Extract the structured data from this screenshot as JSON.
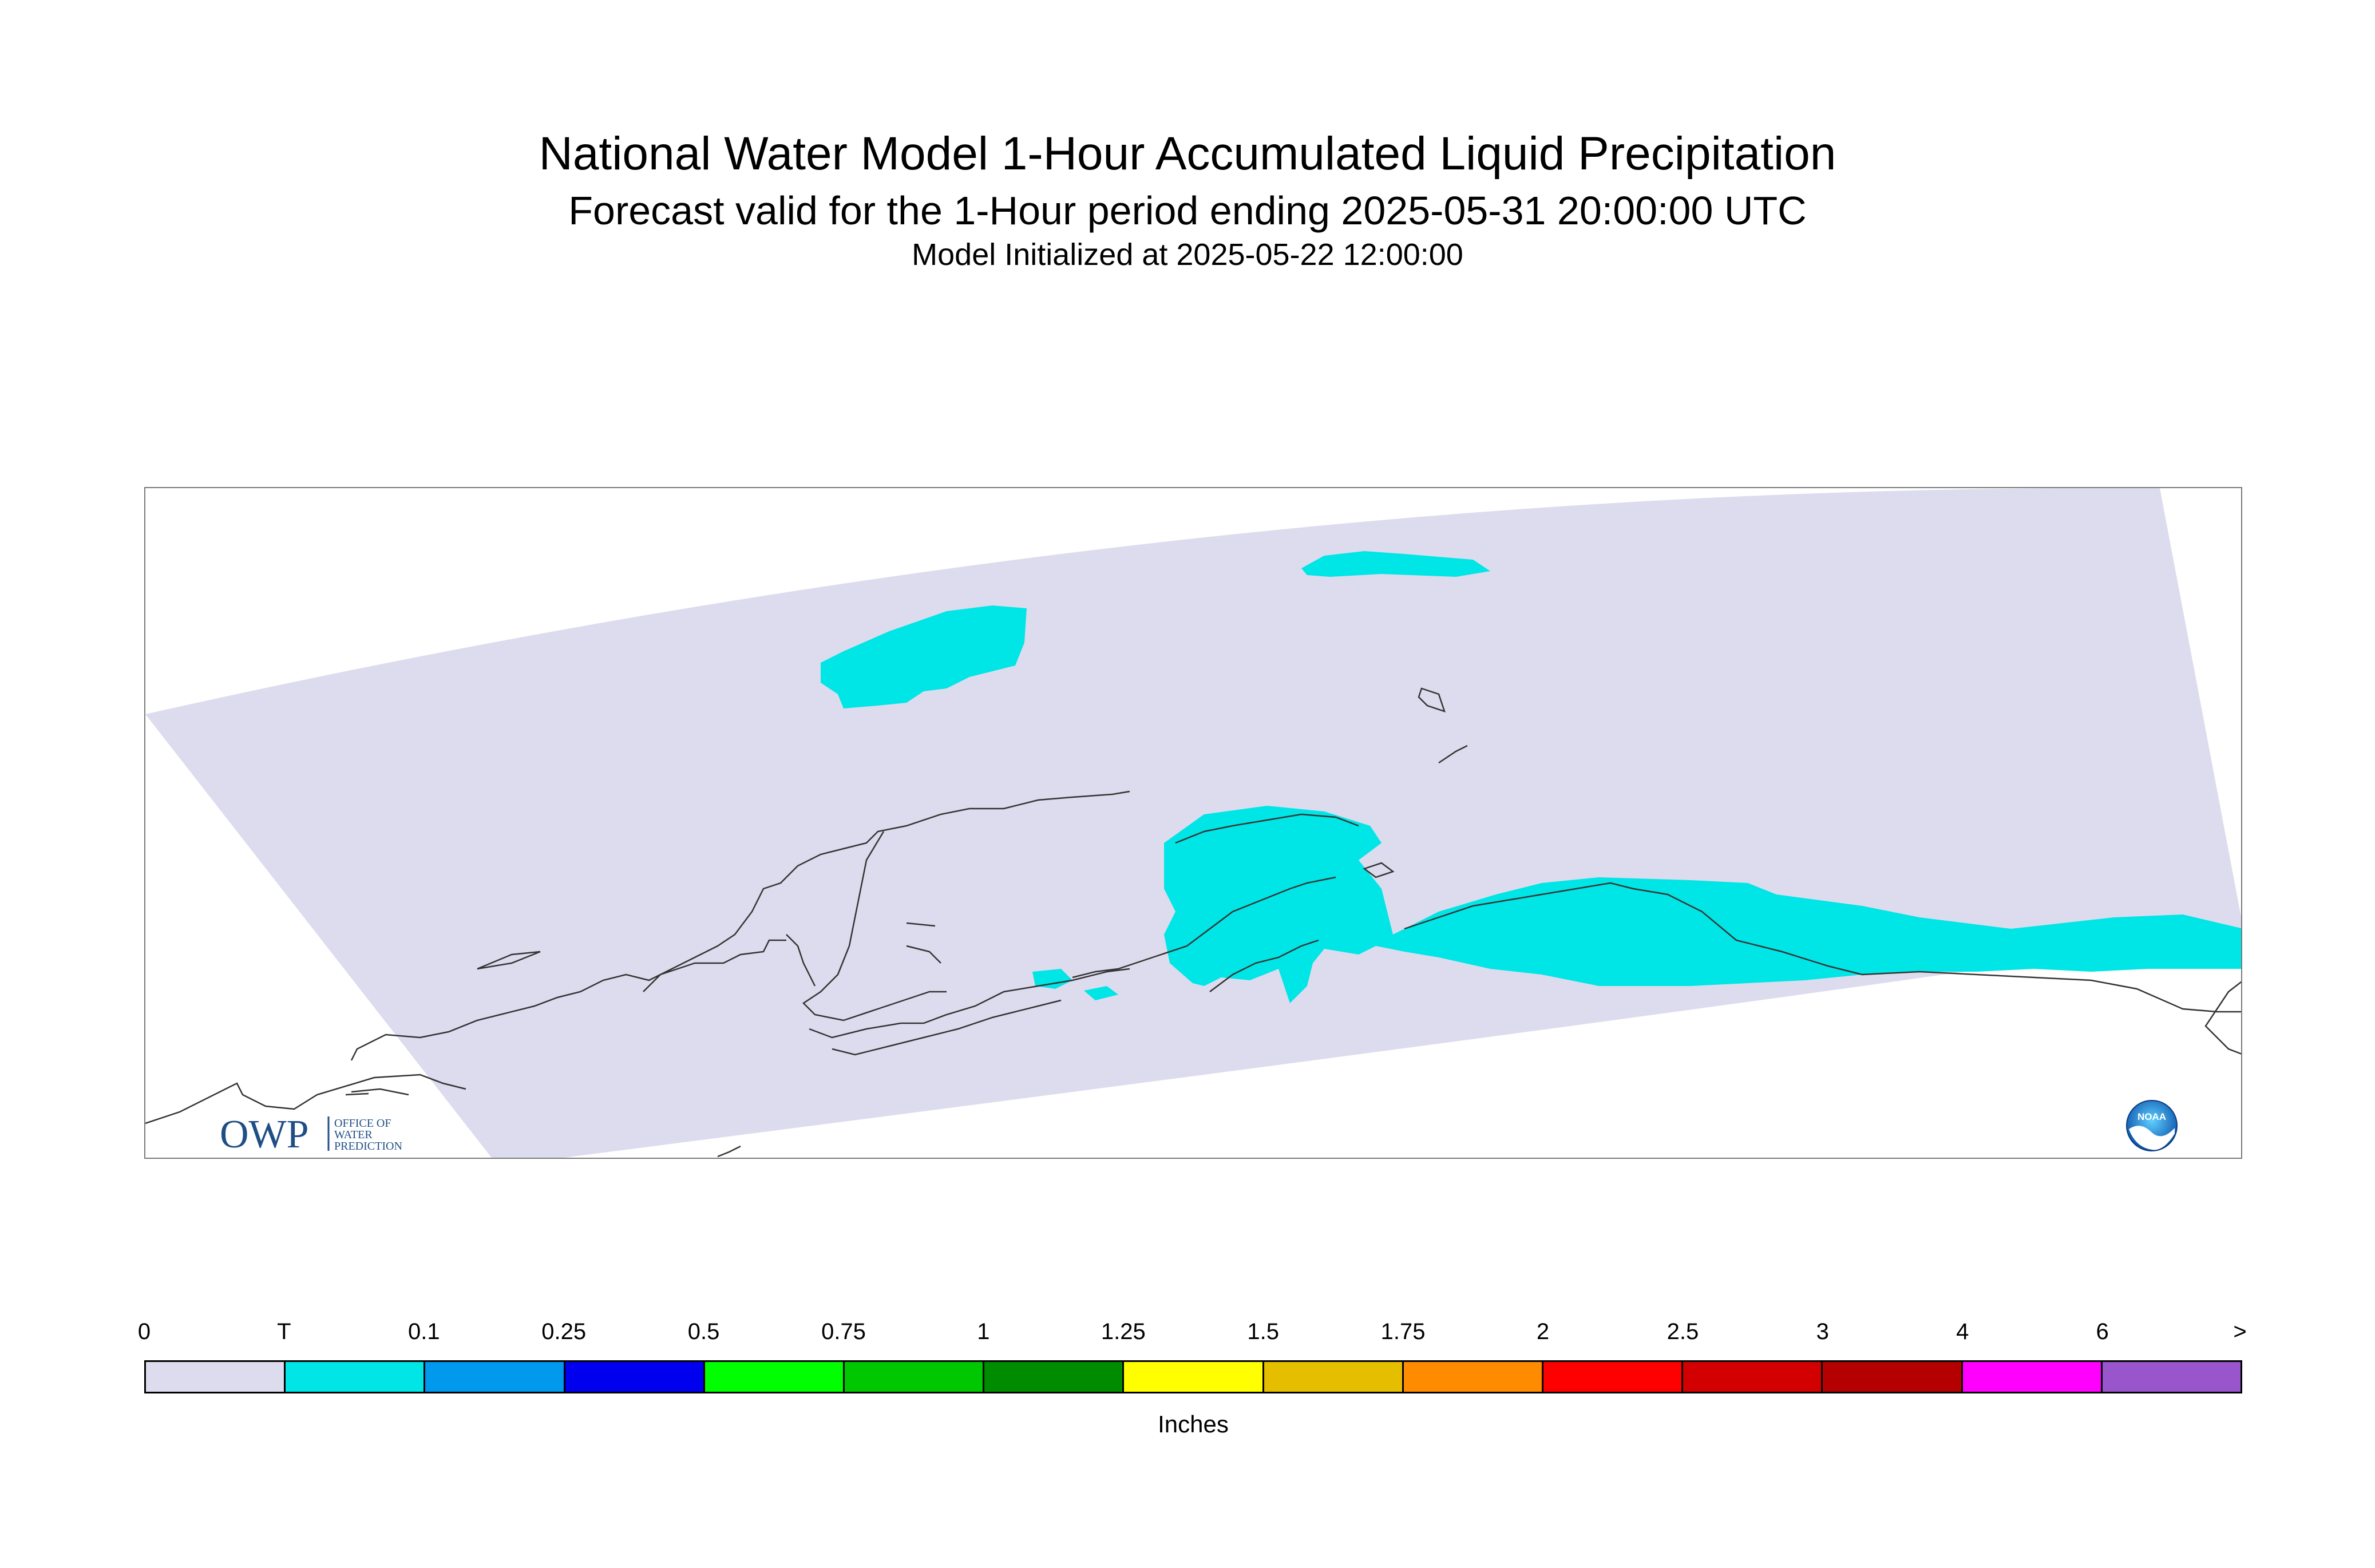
{
  "header": {
    "title": "National Water Model 1-Hour Accumulated Liquid Precipitation",
    "subtitle": "Forecast valid for the 1-Hour period ending 2025-05-31 20:00:00 UTC",
    "init_line": "Model Initialized at 2025-05-22 12:00:00"
  },
  "logos": {
    "owp_mark": "OWP",
    "owp_text": [
      "OFFICE OF",
      "WATER",
      "PREDICTION"
    ],
    "noaa_mark": "NOAA"
  },
  "legend": {
    "ticks": [
      "0",
      "T",
      "0.1",
      "0.25",
      "0.5",
      "0.75",
      "1",
      "1.25",
      "1.5",
      "1.75",
      "2",
      "2.5",
      "3",
      "4",
      "6",
      ">"
    ],
    "colors": [
      "#dcdcee",
      "#00e5e5",
      "#0099ee",
      "#0000ee",
      "#00ff00",
      "#00c800",
      "#008c00",
      "#ffff00",
      "#e6be00",
      "#ff8c00",
      "#ff0000",
      "#d20000",
      "#b40000",
      "#ff00ff",
      "#9955cc"
    ],
    "unit": "Inches"
  },
  "map": {
    "domain_color": "#dcdcee",
    "precip_color": "#00e5e5",
    "coast_color": "#333333"
  }
}
